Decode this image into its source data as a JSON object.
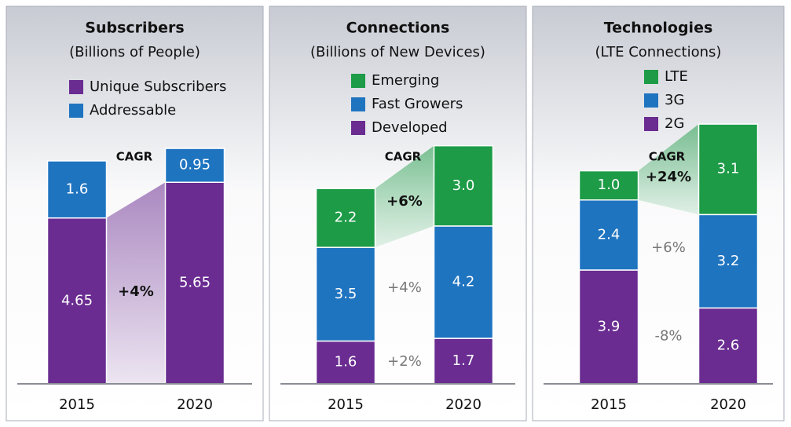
{
  "chart_data": [
    {
      "type": "stacked_bar",
      "title": "Subscribers",
      "subtitle": "(Billions of People)",
      "categories": [
        "2015",
        "2020"
      ],
      "ylim": [
        0,
        9
      ],
      "cagr_label": "CAGR",
      "legend_reverse": false,
      "series": [
        {
          "name": "Unique Subscribers",
          "color": "#6a2c91",
          "values": [
            4.65,
            5.65
          ],
          "cagr": "+4%",
          "highlight": true
        },
        {
          "name": "Addressable",
          "color": "#1f74c0",
          "values": [
            1.6,
            0.95
          ]
        }
      ]
    },
    {
      "type": "stacked_bar",
      "title": "Connections",
      "subtitle": "(Billions of New Devices)",
      "categories": [
        "2015",
        "2020"
      ],
      "ylim": [
        0,
        12
      ],
      "cagr_label": "CAGR",
      "legend_reverse": true,
      "series": [
        {
          "name": "Developed",
          "color": "#6a2c91",
          "values": [
            1.6,
            1.7
          ],
          "cagr": "+2%",
          "highlight": false
        },
        {
          "name": "Fast Growers",
          "color": "#1f74c0",
          "values": [
            3.5,
            4.2
          ],
          "cagr": "+4%",
          "highlight": false
        },
        {
          "name": "Emerging",
          "color": "#1d9b47",
          "values": [
            2.2,
            3.0
          ],
          "value_labels": [
            "2.2",
            "3.0"
          ],
          "cagr": "+6%",
          "highlight": true
        }
      ]
    },
    {
      "type": "stacked_bar",
      "title": "Technologies",
      "subtitle": "(LTE Connections)",
      "categories": [
        "2015",
        "2020"
      ],
      "ylim": [
        0,
        11
      ],
      "cagr_label": "CAGR",
      "legend_reverse": true,
      "series": [
        {
          "name": "2G",
          "color": "#6a2c91",
          "values": [
            3.9,
            2.6
          ],
          "cagr": "-8%",
          "highlight": false
        },
        {
          "name": "3G",
          "color": "#1f74c0",
          "values": [
            2.4,
            3.2
          ],
          "cagr": "+6%",
          "highlight": false
        },
        {
          "name": "LTE",
          "color": "#1d9b47",
          "values": [
            1.0,
            3.1
          ],
          "value_labels": [
            "1.0",
            "3.1"
          ],
          "cagr": "+24%",
          "highlight": true
        }
      ]
    }
  ]
}
